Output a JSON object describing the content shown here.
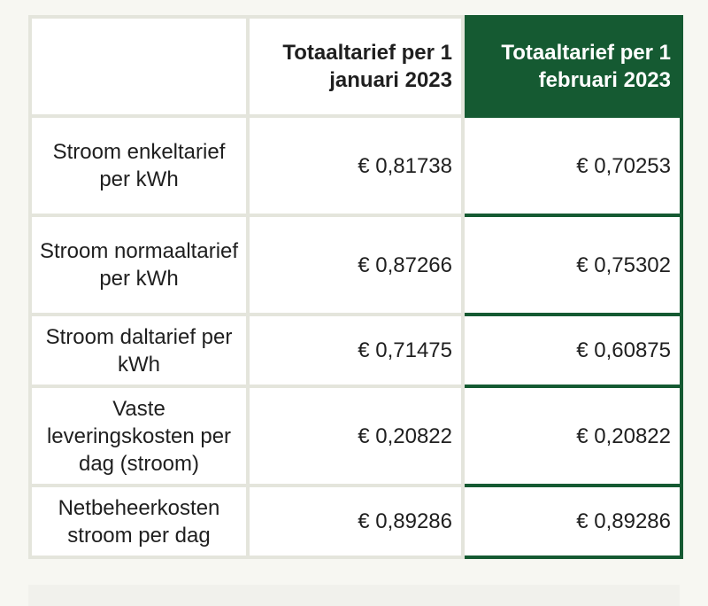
{
  "table": {
    "header": {
      "col1": "",
      "col2": "Totaaltarief per 1 januari 2023",
      "col3": "Totaaltarief per 1 februari 2023"
    },
    "rows": [
      {
        "label": "Stroom enkeltarief per kWh",
        "jan": "€ 0,81738",
        "feb": "€ 0,70253"
      },
      {
        "label": "Stroom normaaltarief per kWh",
        "jan": "€ 0,87266",
        "feb": "€ 0,75302"
      },
      {
        "label": "Stroom daltarief per kWh",
        "jan": "€ 0,71475",
        "feb": "€ 0,60875"
      },
      {
        "label": "Vaste leveringskosten per dag (stroom)",
        "jan": "€ 0,20822",
        "feb": "€ 0,20822"
      },
      {
        "label": "Netbeheerkosten stroom per dag",
        "jan": "€ 0,89286",
        "feb": "€ 0,89286"
      }
    ]
  },
  "colors": {
    "highlight": "#155a32",
    "grid": "#e4e5dc",
    "background": "#f7f7f2"
  }
}
